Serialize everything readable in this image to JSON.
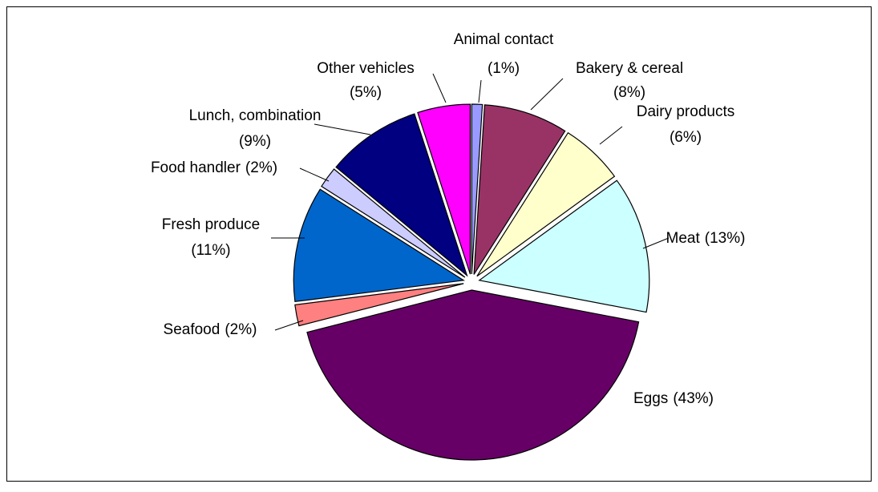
{
  "chart_data": {
    "type": "pie",
    "categories": [
      "Animal contact",
      "Bakery & cereal",
      "Dairy products",
      "Meat",
      "Eggs",
      "Seafood",
      "Fresh produce",
      "Food handler",
      "Lunch, combination",
      "Other vehicles"
    ],
    "values": [
      1,
      8,
      6,
      13,
      43,
      2,
      11,
      2,
      9,
      5
    ],
    "value_labels": [
      "(1%)",
      "(8%)",
      "(6%)",
      "(13%)",
      "(43%)",
      "(2%)",
      "(11%)",
      "(2%)",
      "(9%)",
      "(5%)"
    ],
    "colors": [
      "#9999ff",
      "#993366",
      "#ffffcc",
      "#ccffff",
      "#660066",
      "#ff8080",
      "#0066cc",
      "#ccccff",
      "#000080",
      "#ff00ff"
    ]
  }
}
